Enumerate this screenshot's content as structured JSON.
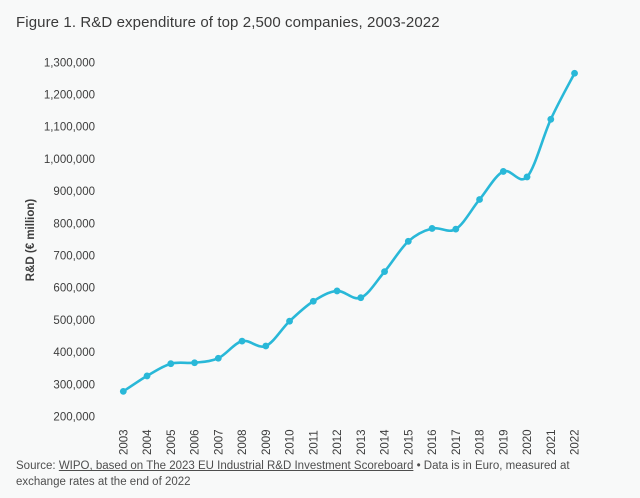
{
  "page": {
    "background": "#f8f9f9",
    "title": "Figure 1. R&D expenditure of top 2,500 companies, 2003-2022"
  },
  "source": {
    "prefix": "Source: ",
    "link_text": "WIPO, based on The 2023 EU Industrial R&D Investment Scoreboard",
    "suffix": " • Data is in Euro, measured at exchange rates at the end of 2022"
  },
  "chart_data": {
    "type": "line",
    "title": "Figure 1. R&D expenditure of top 2,500 companies, 2003-2022",
    "xlabel": "",
    "ylabel": "R&D (€ million)",
    "categories": [
      "2003",
      "2004",
      "2005",
      "2006",
      "2007",
      "2008",
      "2009",
      "2010",
      "2011",
      "2012",
      "2013",
      "2014",
      "2015",
      "2016",
      "2017",
      "2018",
      "2019",
      "2020",
      "2021",
      "2022"
    ],
    "series": [
      {
        "name": "R&D expenditure (€ million)",
        "values": [
          278000,
          326000,
          364000,
          367000,
          381000,
          434000,
          419000,
          496000,
          558000,
          590000,
          569000,
          650000,
          744000,
          784000,
          782000,
          874000,
          961000,
          944000,
          1123000,
          1266000
        ]
      }
    ],
    "ylim": [
      200000,
      1300000
    ],
    "ytick_step": 100000,
    "grid": false,
    "legend": "none",
    "line_color": "#29b8d8",
    "marker": "circle",
    "smooth": true
  }
}
